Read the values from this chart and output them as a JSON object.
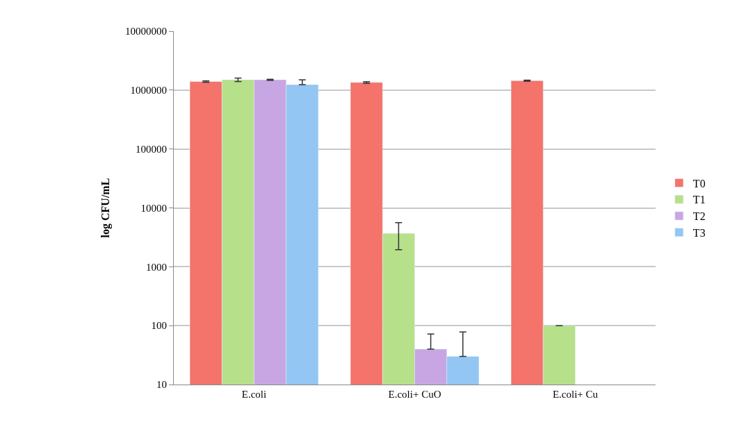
{
  "chart_data": {
    "type": "bar",
    "ylabel": "log CFU/mL",
    "categories": [
      "E.coli",
      "E.coli+ CuO",
      "E.coli+ Cu"
    ],
    "series": [
      {
        "name": "T0",
        "color": "#f4736a",
        "values": [
          1400000,
          1350000,
          1450000
        ],
        "errors": [
          40000,
          40000,
          30000
        ]
      },
      {
        "name": "T1",
        "color": "#b6e08a",
        "values": [
          1500000,
          3700,
          100
        ],
        "errors": [
          100000,
          [
            1950,
            5600
          ],
          null
        ]
      },
      {
        "name": "T2",
        "color": "#c8a6e4",
        "values": [
          1500000,
          40,
          null
        ],
        "errors": [
          30000,
          [
            40,
            72
          ],
          null
        ]
      },
      {
        "name": "T3",
        "color": "#93c6f2",
        "values": [
          1240000,
          30,
          null
        ],
        "errors": [
          [
            1240000,
            1500000
          ],
          [
            30,
            78
          ],
          null
        ]
      }
    ],
    "log": "y",
    "ylim": [
      10,
      10000000
    ],
    "yticks": [
      10,
      100,
      1000,
      10000,
      100000,
      1000000,
      10000000
    ],
    "grid": "y",
    "legend": "right"
  }
}
